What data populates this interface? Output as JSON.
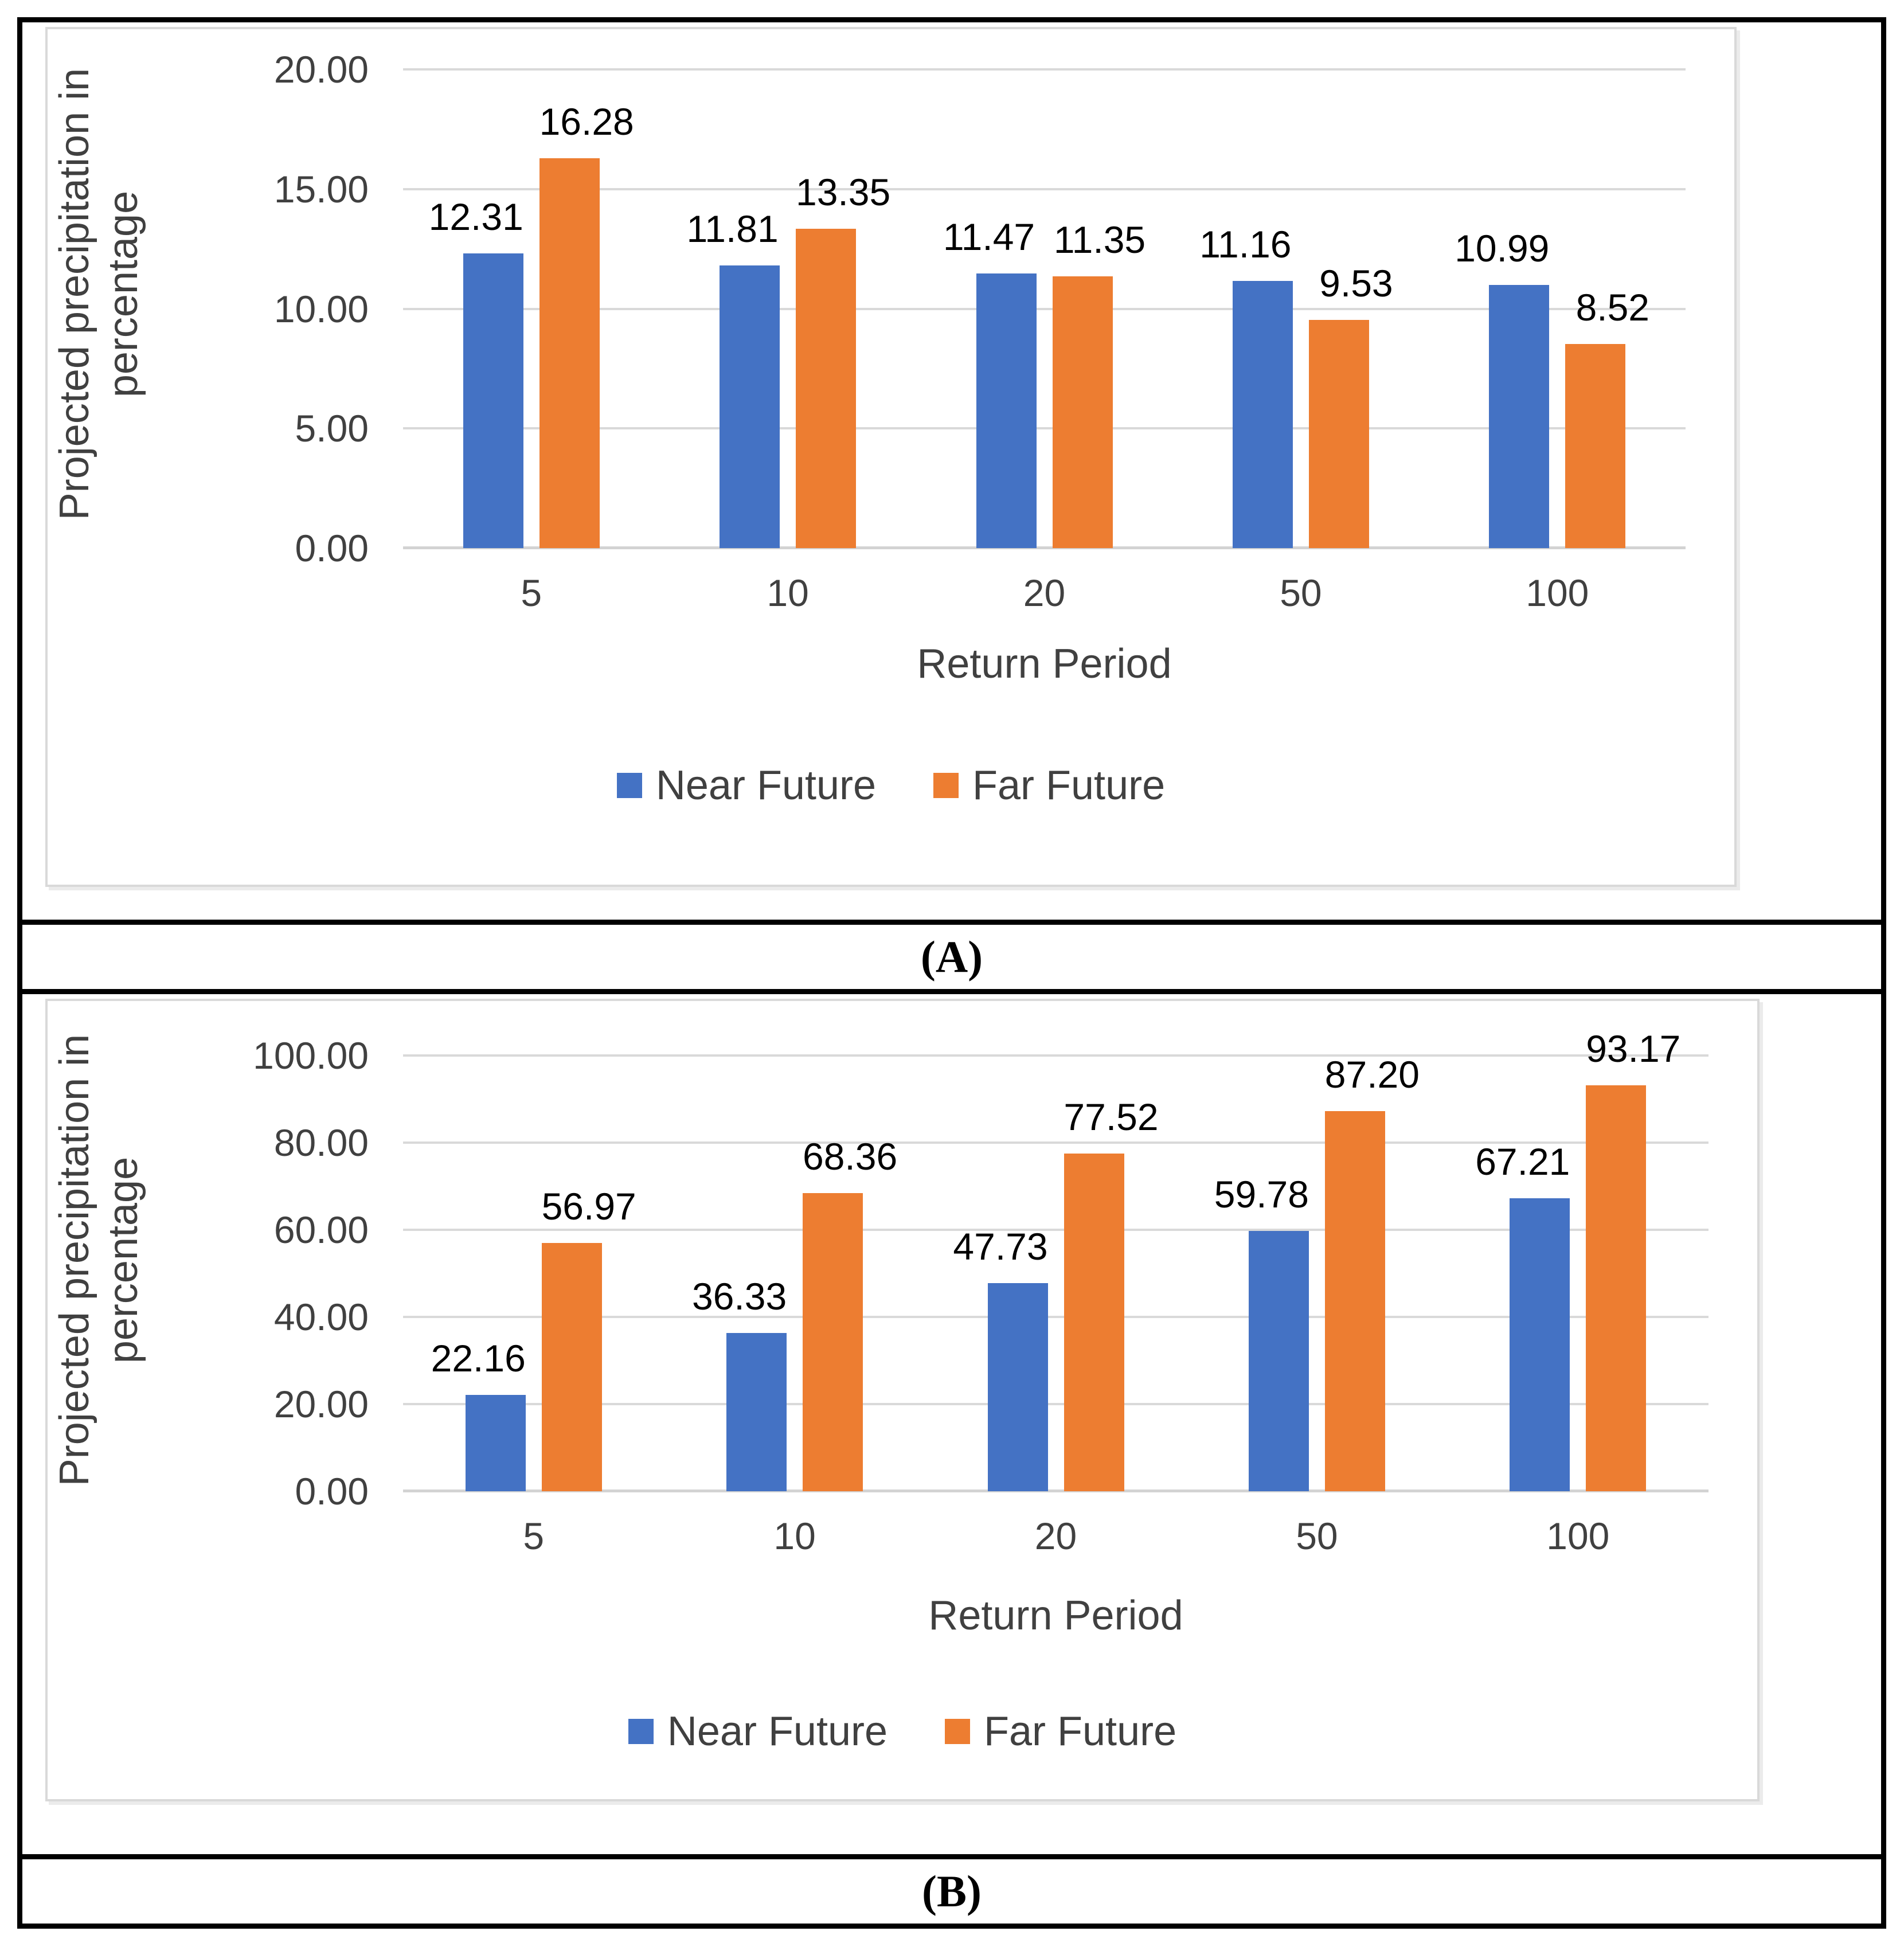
{
  "figure": {
    "caption_a": "(A)",
    "caption_b": "(B)",
    "colors": {
      "near_future": "#4472C4",
      "far_future": "#ED7D31",
      "gridline": "#D9D9D9",
      "chart_border": "#D9D9D9",
      "text": "#000000"
    }
  },
  "chart_data": [
    {
      "type": "bar",
      "panel": "A",
      "title": "",
      "categories": [
        "5",
        "10",
        "20",
        "50",
        "100"
      ],
      "series": [
        {
          "name": "Near Future",
          "color": "#4472C4",
          "values": [
            12.31,
            11.81,
            11.47,
            11.16,
            10.99
          ]
        },
        {
          "name": "Far Future",
          "color": "#ED7D31",
          "values": [
            16.28,
            13.35,
            11.35,
            9.53,
            8.52
          ]
        }
      ],
      "data_labels": [
        "12.31",
        "11.81",
        "11.47",
        "11.16",
        "10.99",
        "16.28",
        "13.35",
        "11.35",
        "9.53",
        "8.52"
      ],
      "xlabel": "Return Period",
      "ylabel": "Projected precipitation in percentage",
      "ylabel_lines": [
        "Projected precipitation in",
        "percentage"
      ],
      "ylim": [
        0,
        20
      ],
      "yticks": [
        0,
        5,
        10,
        15,
        20
      ],
      "ytick_labels": [
        "0.00",
        "5.00",
        "10.00",
        "15.00",
        "20.00"
      ],
      "grid": true,
      "legend_position": "bottom",
      "legend": [
        "Near Future",
        "Far Future"
      ]
    },
    {
      "type": "bar",
      "panel": "B",
      "title": "",
      "categories": [
        "5",
        "10",
        "20",
        "50",
        "100"
      ],
      "series": [
        {
          "name": "Near Future",
          "color": "#4472C4",
          "values": [
            22.16,
            36.33,
            47.73,
            59.78,
            67.21
          ]
        },
        {
          "name": "Far Future",
          "color": "#ED7D31",
          "values": [
            56.97,
            68.36,
            77.52,
            87.2,
            93.17
          ]
        }
      ],
      "data_labels": [
        "22.16",
        "36.33",
        "47.73",
        "59.78",
        "67.21",
        "56.97",
        "68.36",
        "77.52",
        "87.20",
        "93.17"
      ],
      "xlabel": "Return Period",
      "ylabel": "Projected precipitation in percentage",
      "ylabel_lines": [
        "Projected precipitation in",
        "percentage"
      ],
      "ylim": [
        0,
        100
      ],
      "yticks": [
        0,
        20,
        40,
        60,
        80,
        100
      ],
      "ytick_labels": [
        "0.00",
        "20.00",
        "40.00",
        "60.00",
        "80.00",
        "100.00"
      ],
      "grid": true,
      "legend_position": "bottom",
      "legend": [
        "Near Future",
        "Far Future"
      ]
    }
  ]
}
